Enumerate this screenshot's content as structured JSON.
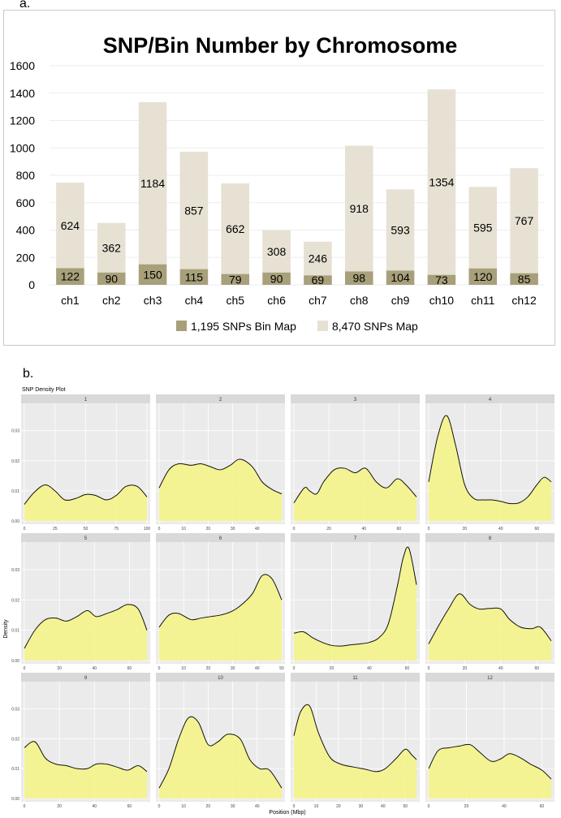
{
  "panel_labels": {
    "a": "a.",
    "b": "b."
  },
  "colors": {
    "bin": "#a8a07a",
    "snp": "#e6e1d3",
    "fill": "#f5f48a",
    "panel_bg": "#ebebeb",
    "strip_bg": "#d9d9d9"
  },
  "chart_data": [
    {
      "type": "bar",
      "title": "SNP/Bin Number by Chromosome",
      "xlabel": "",
      "ylabel": "",
      "ylim": [
        0,
        1600
      ],
      "yticks": [
        0,
        200,
        400,
        600,
        800,
        1000,
        1200,
        1400,
        1600
      ],
      "categories": [
        "ch1",
        "ch2",
        "ch3",
        "ch4",
        "ch5",
        "ch6",
        "ch7",
        "ch8",
        "ch9",
        "ch10",
        "ch11",
        "ch12"
      ],
      "series": [
        {
          "name": "1,195 SNPs Bin Map",
          "values": [
            122,
            90,
            150,
            115,
            79,
            90,
            69,
            98,
            104,
            73,
            120,
            85
          ]
        },
        {
          "name": "8,470 SNPs Map",
          "values": [
            624,
            362,
            1184,
            857,
            662,
            308,
            246,
            918,
            593,
            1354,
            595,
            767
          ]
        }
      ],
      "legend_position": "bottom"
    },
    {
      "type": "area",
      "title": "SNP Density Plot",
      "xlabel": "Position (Mbp)",
      "ylabel": "Density",
      "yticks": [
        0.0,
        0.01,
        0.02,
        0.03
      ],
      "yticklabels": [
        "0.00",
        "0.01",
        "0.02",
        "0.03"
      ],
      "ylim": [
        0,
        0.038
      ],
      "panels": [
        {
          "label": "1",
          "xlim": [
            0,
            100
          ],
          "xticks": [
            0,
            25,
            50,
            75,
            100
          ],
          "x": [
            0,
            8,
            17,
            25,
            33,
            42,
            50,
            58,
            67,
            75,
            83,
            92,
            100
          ],
          "y": [
            0.0055,
            0.0095,
            0.012,
            0.01,
            0.007,
            0.0075,
            0.0088,
            0.0085,
            0.007,
            0.0085,
            0.0115,
            0.0115,
            0.008
          ]
        },
        {
          "label": "2",
          "xlim": [
            0,
            50
          ],
          "xticks": [
            0,
            10,
            20,
            30,
            40
          ],
          "x": [
            0,
            4,
            8,
            13,
            17,
            21,
            25,
            29,
            33,
            38,
            42,
            46,
            50
          ],
          "y": [
            0.011,
            0.017,
            0.019,
            0.0185,
            0.019,
            0.018,
            0.017,
            0.0185,
            0.0205,
            0.018,
            0.013,
            0.0105,
            0.009
          ]
        },
        {
          "label": "3",
          "xlim": [
            0,
            70
          ],
          "xticks": [
            0,
            20,
            40,
            60
          ],
          "x": [
            0,
            6,
            9,
            13,
            17,
            23,
            29,
            35,
            41,
            47,
            53,
            59,
            64,
            70
          ],
          "y": [
            0.006,
            0.011,
            0.01,
            0.009,
            0.013,
            0.017,
            0.0175,
            0.016,
            0.0175,
            0.013,
            0.011,
            0.014,
            0.012,
            0.008
          ]
        },
        {
          "label": "4",
          "xlim": [
            0,
            68
          ],
          "xticks": [
            0,
            20,
            40,
            60
          ],
          "x": [
            0,
            5,
            10,
            15,
            20,
            25,
            30,
            35,
            40,
            45,
            50,
            55,
            60,
            64,
            68
          ],
          "y": [
            0.013,
            0.028,
            0.035,
            0.025,
            0.012,
            0.0075,
            0.007,
            0.007,
            0.0065,
            0.0058,
            0.006,
            0.008,
            0.012,
            0.0145,
            0.013
          ]
        },
        {
          "label": "5",
          "xlim": [
            0,
            70
          ],
          "xticks": [
            0,
            20,
            40,
            60
          ],
          "x": [
            0,
            6,
            12,
            18,
            24,
            30,
            36,
            41,
            47,
            53,
            59,
            65,
            70
          ],
          "y": [
            0.004,
            0.01,
            0.0135,
            0.014,
            0.013,
            0.0145,
            0.0165,
            0.0145,
            0.0155,
            0.0168,
            0.0185,
            0.017,
            0.01
          ]
        },
        {
          "label": "6",
          "xlim": [
            0,
            50
          ],
          "xticks": [
            0,
            10,
            20,
            30,
            40,
            50
          ],
          "x": [
            0,
            4,
            8,
            13,
            17,
            21,
            25,
            29,
            33,
            38,
            42,
            46,
            50
          ],
          "y": [
            0.011,
            0.015,
            0.0155,
            0.0135,
            0.014,
            0.0145,
            0.015,
            0.016,
            0.018,
            0.022,
            0.028,
            0.027,
            0.02
          ]
        },
        {
          "label": "7",
          "xlim": [
            0,
            65
          ],
          "xticks": [
            0,
            20,
            40,
            60
          ],
          "x": [
            0,
            5,
            10,
            15,
            20,
            25,
            30,
            35,
            40,
            45,
            50,
            55,
            58,
            61,
            65
          ],
          "y": [
            0.009,
            0.0095,
            0.0075,
            0.006,
            0.005,
            0.0048,
            0.0052,
            0.0055,
            0.006,
            0.0075,
            0.012,
            0.025,
            0.034,
            0.037,
            0.025
          ]
        },
        {
          "label": "8",
          "xlim": [
            0,
            68
          ],
          "xticks": [
            0,
            20,
            40,
            60
          ],
          "x": [
            0,
            6,
            11,
            17,
            23,
            28,
            34,
            40,
            45,
            51,
            57,
            62,
            68
          ],
          "y": [
            0.0055,
            0.012,
            0.017,
            0.022,
            0.0185,
            0.017,
            0.0172,
            0.017,
            0.0135,
            0.011,
            0.0105,
            0.011,
            0.0065
          ]
        },
        {
          "label": "9",
          "xlim": [
            0,
            70
          ],
          "xticks": [
            0,
            20,
            40,
            60
          ],
          "x": [
            0,
            6,
            12,
            18,
            24,
            30,
            36,
            41,
            47,
            53,
            59,
            65,
            70
          ],
          "y": [
            0.017,
            0.019,
            0.0135,
            0.0115,
            0.011,
            0.01,
            0.01,
            0.0115,
            0.0115,
            0.0105,
            0.0095,
            0.011,
            0.009
          ]
        },
        {
          "label": "10",
          "xlim": [
            0,
            50
          ],
          "xticks": [
            0,
            10,
            20,
            30,
            40
          ],
          "x": [
            0,
            4,
            8,
            12,
            16,
            20,
            24,
            28,
            33,
            37,
            41,
            45,
            50
          ],
          "y": [
            0.0035,
            0.01,
            0.02,
            0.027,
            0.0255,
            0.018,
            0.019,
            0.0215,
            0.02,
            0.013,
            0.01,
            0.0095,
            0.0035
          ]
        },
        {
          "label": "11",
          "xlim": [
            0,
            55
          ],
          "xticks": [
            0,
            10,
            20,
            30,
            40,
            50
          ],
          "x": [
            0,
            3,
            7,
            11,
            16,
            21,
            27,
            32,
            37,
            41,
            46,
            50,
            53,
            55
          ],
          "y": [
            0.021,
            0.029,
            0.031,
            0.022,
            0.014,
            0.0115,
            0.0105,
            0.0098,
            0.009,
            0.01,
            0.0135,
            0.0165,
            0.0145,
            0.013
          ]
        },
        {
          "label": "12",
          "xlim": [
            0,
            65
          ],
          "xticks": [
            0,
            20,
            40,
            60
          ],
          "x": [
            0,
            5,
            11,
            16,
            22,
            27,
            33,
            38,
            43,
            49,
            54,
            60,
            65
          ],
          "y": [
            0.01,
            0.016,
            0.017,
            0.0175,
            0.018,
            0.0155,
            0.0125,
            0.0132,
            0.015,
            0.0135,
            0.0115,
            0.0095,
            0.0065
          ]
        }
      ]
    }
  ]
}
